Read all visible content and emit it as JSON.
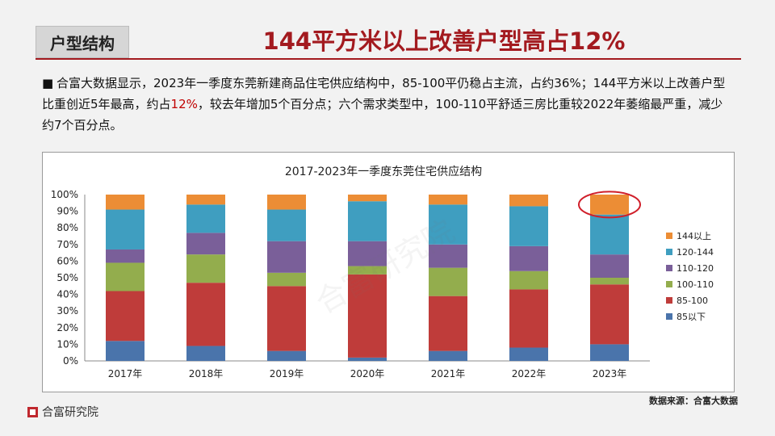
{
  "header": {
    "section_label": "户型结构",
    "title": "144平方米以上改善户型高占12%"
  },
  "summary": {
    "bullet": "■",
    "part1": "合富大数据显示，2023年一季度东莞新建商品住宅供应结构中，85-100平仍稳占主流，占约36%；144平方米以上改善户型比重创近5年最高，约占",
    "highlight": "12%",
    "part2": "，较去年增加5个百分点；六个需求类型中，100-110平舒适三房比重较2022年萎缩最严重，减少约7个百分点。"
  },
  "source_note": "数据来源：合富大数据",
  "logo_text": "合富研究院",
  "watermark_text": "合富研究院",
  "colors": {
    "brand_red": "#a31a1f",
    "highlight_circle": "#d01f2a"
  },
  "chart_data": {
    "type": "bar",
    "stacked": true,
    "title": "2017-2023年一季度东莞住宅供应结构",
    "categories": [
      "2017年",
      "2018年",
      "2019年",
      "2020年",
      "2021年",
      "2022年",
      "2023年"
    ],
    "ylim": [
      0,
      100
    ],
    "yticks": [
      "0%",
      "10%",
      "20%",
      "30%",
      "40%",
      "50%",
      "60%",
      "70%",
      "80%",
      "90%",
      "100%"
    ],
    "legend_position": "right",
    "highlighted_category": "2023年",
    "series": [
      {
        "name": "85以下",
        "color": "#4a74ab",
        "values": [
          12,
          9,
          6,
          2,
          6,
          8,
          10
        ]
      },
      {
        "name": "85-100",
        "color": "#bf3c3a",
        "values": [
          30,
          38,
          39,
          50,
          33,
          35,
          36
        ]
      },
      {
        "name": "100-110",
        "color": "#93ad4d",
        "values": [
          17,
          17,
          8,
          5,
          17,
          11,
          4
        ]
      },
      {
        "name": "110-120",
        "color": "#7a5f99",
        "values": [
          8,
          13,
          19,
          15,
          14,
          15,
          14
        ]
      },
      {
        "name": "120-144",
        "color": "#3f9ec0",
        "values": [
          24,
          17,
          19,
          24,
          24,
          24,
          24
        ]
      },
      {
        "name": "144以上",
        "color": "#ec8d35",
        "values": [
          9,
          6,
          9,
          4,
          6,
          7,
          12
        ]
      }
    ]
  }
}
